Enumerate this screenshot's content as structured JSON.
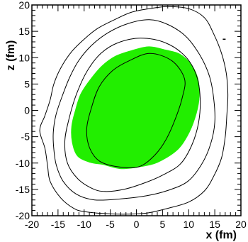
{
  "chart_data": {
    "type": "contour",
    "title": "",
    "xlabel": "x (fm)",
    "ylabel": "z (fm)",
    "xlim": [
      -20,
      20
    ],
    "ylim": [
      -20,
      20
    ],
    "xticks": [
      -20,
      -15,
      -10,
      -5,
      0,
      5,
      10,
      15,
      20
    ],
    "yticks": [
      -20,
      -15,
      -10,
      -5,
      0,
      5,
      10,
      15,
      20
    ],
    "grid": false,
    "colors": {
      "filled_region": "#22ee00",
      "contour_line": "#000000",
      "frame": "#000000"
    },
    "contours": [
      {
        "level_rank": 1,
        "filled": false,
        "points": [
          [
            -6,
            -15.4
          ],
          [
            -2,
            -14.9
          ],
          [
            2,
            -13.6
          ],
          [
            5,
            -12.3
          ],
          [
            8.4,
            -10.2
          ],
          [
            10.6,
            -6.6
          ],
          [
            11.9,
            -2.3
          ],
          [
            12.2,
            2.3
          ],
          [
            11.5,
            6.6
          ],
          [
            9.4,
            10.2
          ],
          [
            5.6,
            12.8
          ],
          [
            0.8,
            13.7
          ],
          [
            -3.6,
            12.8
          ],
          [
            -6.8,
            10.8
          ],
          [
            -9.4,
            7.5
          ],
          [
            -11.5,
            3
          ],
          [
            -12.9,
            -1.6
          ],
          [
            -13.7,
            -5.9
          ],
          [
            -13.2,
            -10
          ],
          [
            -11.2,
            -13
          ],
          [
            -8.5,
            -14.8
          ]
        ]
      },
      {
        "level_rank": 2,
        "filled": false,
        "points": [
          [
            -8,
            -17
          ],
          [
            -3,
            -16.8
          ],
          [
            2,
            -16.2
          ],
          [
            6,
            -15.2
          ],
          [
            9.8,
            -13.5
          ],
          [
            12.5,
            -10.2
          ],
          [
            14.2,
            -6.4
          ],
          [
            15,
            -2.3
          ],
          [
            14.8,
            2.2
          ],
          [
            14,
            6.4
          ],
          [
            12.2,
            10.4
          ],
          [
            9.5,
            14
          ],
          [
            6,
            16.3
          ],
          [
            2.5,
            17.2
          ],
          [
            -1.5,
            16.5
          ],
          [
            -5.3,
            14.8
          ],
          [
            -8.5,
            12.4
          ],
          [
            -11,
            9.5
          ],
          [
            -12.8,
            6.2
          ],
          [
            -14.2,
            2.7
          ],
          [
            -15.4,
            -0.9
          ],
          [
            -15.9,
            -4.2
          ],
          [
            -15.8,
            -7.4
          ],
          [
            -15.3,
            -10.5
          ],
          [
            -14,
            -13.5
          ],
          [
            -11.5,
            -15.9
          ]
        ]
      },
      {
        "level_rank": 3,
        "filled": false,
        "points": [
          [
            -10,
            -19.2
          ],
          [
            -6,
            -19.6
          ],
          [
            -2,
            -19.7
          ],
          [
            2,
            -19.5
          ],
          [
            6,
            -18.6
          ],
          [
            10,
            -17.4
          ],
          [
            13,
            -15.3
          ],
          [
            14.8,
            -12.5
          ],
          [
            16.3,
            -9
          ],
          [
            17,
            -5
          ],
          [
            17.3,
            -1
          ],
          [
            17.5,
            3
          ],
          [
            17.2,
            7
          ],
          [
            16.3,
            10.8
          ],
          [
            14.8,
            14.5
          ],
          [
            13,
            17.6
          ],
          [
            10,
            19.3
          ],
          [
            6,
            19.7
          ],
          [
            2.5,
            19.3
          ],
          [
            -1,
            18.6
          ],
          [
            -4.2,
            17.2
          ],
          [
            -7.5,
            15.5
          ],
          [
            -10,
            13.5
          ],
          [
            -12.5,
            11
          ],
          [
            -14.5,
            8
          ],
          [
            -15.8,
            5
          ],
          [
            -16.5,
            2
          ],
          [
            -17.5,
            -1
          ],
          [
            -18.5,
            -3.8
          ],
          [
            -17.5,
            -7.2
          ],
          [
            -17,
            -10.5
          ],
          [
            -16.5,
            -13.5
          ],
          [
            -14.5,
            -16.6
          ],
          [
            -12,
            -18.6
          ]
        ]
      },
      {
        "level_rank": 0,
        "filled": true,
        "points": [
          [
            -6.4,
            -10.2
          ],
          [
            -3,
            -11
          ],
          [
            0.8,
            -10.6
          ],
          [
            4,
            -9.8
          ],
          [
            7.6,
            -7.6
          ],
          [
            9.7,
            -4.8
          ],
          [
            11.1,
            -1.5
          ],
          [
            11.9,
            2
          ],
          [
            11.8,
            5.5
          ],
          [
            10.6,
            8.4
          ],
          [
            8.3,
            10.6
          ],
          [
            5.5,
            11.4
          ],
          [
            2.4,
            12
          ],
          [
            -0.8,
            11.3
          ],
          [
            -4,
            10.2
          ],
          [
            -6.6,
            8.3
          ],
          [
            -8.9,
            5.6
          ],
          [
            -10.6,
            3
          ],
          [
            -11.6,
            0
          ],
          [
            -12.3,
            -3
          ],
          [
            -12.2,
            -6
          ],
          [
            -11.2,
            -8.6
          ],
          [
            -8.8,
            -9.8
          ]
        ]
      },
      {
        "level_rank": 0,
        "filled": false,
        "points": [
          [
            -3.6,
            -10.7
          ],
          [
            0.5,
            -10.7
          ],
          [
            3.6,
            -8.4
          ],
          [
            5.7,
            -5.5
          ],
          [
            7.5,
            -1.5
          ],
          [
            8.8,
            2.5
          ],
          [
            9.2,
            6
          ],
          [
            6.8,
            9.4
          ],
          [
            2.6,
            10.8
          ],
          [
            -1.4,
            9.4
          ],
          [
            -4.6,
            7.5
          ],
          [
            -7.1,
            4.5
          ],
          [
            -8.6,
            0.5
          ],
          [
            -9.5,
            -3.5
          ],
          [
            -9,
            -7
          ],
          [
            -7.1,
            -9.6
          ]
        ]
      }
    ],
    "annotations": [
      {
        "type": "stray-tick",
        "x": 16.8,
        "y": 13.5
      }
    ]
  }
}
